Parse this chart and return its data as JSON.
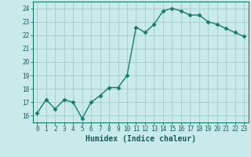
{
  "x": [
    0,
    1,
    2,
    3,
    4,
    5,
    6,
    7,
    8,
    9,
    10,
    11,
    12,
    13,
    14,
    15,
    16,
    17,
    18,
    19,
    20,
    21,
    22,
    23
  ],
  "y": [
    16.2,
    17.2,
    16.5,
    17.2,
    17.0,
    15.8,
    17.0,
    17.5,
    18.1,
    18.1,
    19.0,
    22.6,
    22.2,
    22.8,
    23.8,
    24.0,
    23.8,
    23.5,
    23.5,
    23.0,
    22.8,
    22.5,
    22.2,
    21.9
  ],
  "line_color": "#1a7a6a",
  "marker": "D",
  "markersize": 2.5,
  "linewidth": 1.0,
  "bg_color": "#c8eaea",
  "grid_color": "#a8c8c8",
  "xlabel": "Humidex (Indice chaleur)",
  "ylabel": "",
  "ylim": [
    15.5,
    24.5
  ],
  "xlim": [
    -0.5,
    23.5
  ],
  "yticks": [
    16,
    17,
    18,
    19,
    20,
    21,
    22,
    23,
    24
  ],
  "xticks": [
    0,
    1,
    2,
    3,
    4,
    5,
    6,
    7,
    8,
    9,
    10,
    11,
    12,
    13,
    14,
    15,
    16,
    17,
    18,
    19,
    20,
    21,
    22,
    23
  ],
  "tick_color": "#1a5a5a",
  "tick_fontsize": 5.5,
  "xlabel_fontsize": 7.0,
  "spine_color": "#1a7a6a"
}
